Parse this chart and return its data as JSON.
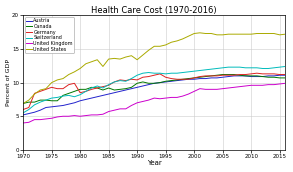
{
  "title": "Health Care Cost (1970-2016)",
  "xlabel": "Year",
  "ylabel": "Percent of GDP",
  "xlim": [
    1970,
    2016
  ],
  "ylim": [
    0,
    20
  ],
  "yticks": [
    0,
    5,
    10,
    15,
    20
  ],
  "xticks": [
    1970,
    1975,
    1980,
    1985,
    1990,
    1995,
    2000,
    2005,
    2010,
    2015
  ],
  "countries": [
    "Austria",
    "Canada",
    "Germany",
    "Switzerland",
    "United Kingdom",
    "United States"
  ],
  "colors": [
    "#2222cc",
    "#007700",
    "#dd2222",
    "#00bbbb",
    "#cc00cc",
    "#aaaa00"
  ],
  "data": {
    "Austria": [
      5.2,
      5.4,
      5.6,
      5.9,
      6.3,
      6.4,
      6.5,
      6.6,
      6.8,
      7.0,
      7.3,
      7.5,
      7.7,
      7.9,
      8.1,
      8.3,
      8.5,
      8.7,
      8.9,
      9.1,
      9.3,
      9.5,
      9.7,
      9.9,
      10.0,
      10.1,
      10.2,
      10.3,
      10.4,
      10.5,
      10.5,
      10.6,
      10.6,
      10.7,
      10.7,
      10.8,
      10.9,
      11.0,
      11.0,
      11.0,
      10.9,
      10.9,
      10.9,
      11.0,
      11.0,
      11.1,
      11.1
    ],
    "Canada": [
      6.9,
      7.1,
      7.1,
      7.4,
      7.4,
      7.3,
      7.3,
      8.1,
      8.4,
      8.7,
      9.0,
      9.0,
      9.3,
      9.2,
      8.9,
      9.2,
      8.9,
      9.0,
      9.1,
      9.3,
      9.9,
      10.1,
      9.9,
      9.9,
      10.0,
      10.2,
      10.3,
      10.4,
      10.5,
      10.6,
      10.7,
      10.8,
      10.9,
      11.0,
      11.1,
      11.2,
      11.2,
      11.2,
      11.1,
      11.0,
      11.0,
      11.0,
      10.9,
      10.8,
      10.8,
      10.7,
      10.7
    ],
    "Germany": [
      6.0,
      6.3,
      8.4,
      8.7,
      9.0,
      9.3,
      9.1,
      9.1,
      9.7,
      9.9,
      8.5,
      8.7,
      9.0,
      9.2,
      9.4,
      9.6,
      10.1,
      10.4,
      10.3,
      10.5,
      10.4,
      10.8,
      10.9,
      11.1,
      11.3,
      10.8,
      10.6,
      10.5,
      10.5,
      10.5,
      10.7,
      10.9,
      11.0,
      11.0,
      11.0,
      11.1,
      11.1,
      11.1,
      11.2,
      11.2,
      11.3,
      11.4,
      11.3,
      11.3,
      11.3,
      11.2,
      11.2
    ],
    "Switzerland": [
      5.5,
      6.0,
      6.7,
      7.1,
      7.4,
      7.7,
      7.8,
      8.0,
      8.1,
      7.9,
      8.2,
      8.7,
      9.2,
      9.5,
      9.2,
      9.7,
      10.1,
      10.3,
      10.2,
      10.6,
      11.1,
      11.4,
      11.5,
      11.4,
      11.4,
      11.3,
      11.4,
      11.4,
      11.5,
      11.6,
      11.7,
      11.8,
      11.9,
      12.0,
      12.1,
      12.2,
      12.3,
      12.3,
      12.3,
      12.2,
      12.2,
      12.2,
      12.1,
      12.1,
      12.2,
      12.3,
      12.4
    ],
    "United Kingdom": [
      4.0,
      4.1,
      4.5,
      4.5,
      4.6,
      4.7,
      4.9,
      5.0,
      5.0,
      5.1,
      5.0,
      5.1,
      5.2,
      5.2,
      5.3,
      5.7,
      5.9,
      6.1,
      6.1,
      6.6,
      7.0,
      7.2,
      7.4,
      7.7,
      7.6,
      7.7,
      7.8,
      7.8,
      8.0,
      8.3,
      8.7,
      9.1,
      9.0,
      9.0,
      9.0,
      9.1,
      9.2,
      9.3,
      9.4,
      9.5,
      9.6,
      9.6,
      9.6,
      9.7,
      9.7,
      9.8,
      9.9
    ],
    "United States": [
      6.9,
      7.4,
      8.3,
      8.9,
      9.1,
      10.0,
      10.4,
      10.6,
      11.2,
      11.6,
      12.1,
      12.8,
      13.1,
      13.4,
      12.4,
      13.5,
      13.6,
      13.5,
      13.8,
      14.0,
      13.4,
      14.1,
      14.8,
      15.4,
      15.4,
      15.6,
      16.0,
      16.2,
      16.5,
      16.9,
      17.3,
      17.4,
      17.3,
      17.3,
      17.1,
      17.1,
      17.2,
      17.2,
      17.2,
      17.2,
      17.2,
      17.3,
      17.3,
      17.3,
      17.3,
      17.1,
      17.2
    ]
  },
  "background_color": "#ffffff",
  "grid_color": "#cccccc"
}
